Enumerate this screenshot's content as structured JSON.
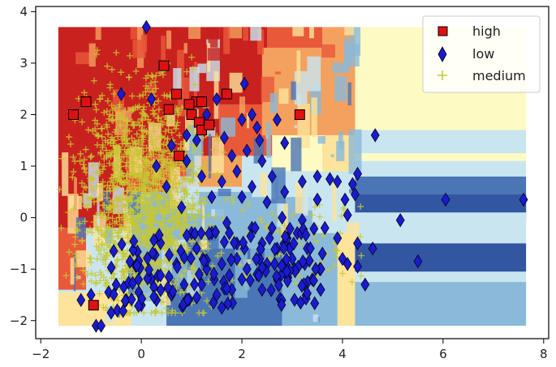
{
  "chart_data": {
    "type": "scatter",
    "title": "",
    "xlabel": "",
    "ylabel": "",
    "xlim": [
      -2.1,
      8.1
    ],
    "ylim": [
      -2.35,
      4.1
    ],
    "x_ticks": [
      -2,
      0,
      2,
      4,
      6,
      8
    ],
    "y_ticks": [
      -2,
      -1,
      0,
      1,
      2,
      3,
      4
    ],
    "grid": false,
    "legend_position": "top-right",
    "background": "decision-region heatmap (red = high, yellow = medium, blue = low)",
    "region_colors": {
      "high_strong": "#c8211e",
      "high": "#e8593a",
      "high_light": "#f4a15f",
      "medium_light": "#fde49a",
      "medium": "#fefac3",
      "low_light": "#c9e6f0",
      "low_mid": "#8ab9d9",
      "low": "#4a76b6",
      "low_strong": "#3356a2"
    },
    "series": [
      {
        "name": "high",
        "marker": "square",
        "color": "#dd1111",
        "points": [
          [
            -1.35,
            2.0
          ],
          [
            -1.1,
            2.25
          ],
          [
            0.45,
            2.95
          ],
          [
            0.55,
            2.1
          ],
          [
            0.7,
            2.4
          ],
          [
            0.75,
            1.2
          ],
          [
            1.0,
            2.0
          ],
          [
            1.1,
            2.25
          ],
          [
            1.15,
            1.85
          ],
          [
            1.2,
            1.7
          ],
          [
            1.2,
            2.25
          ],
          [
            1.7,
            2.4
          ],
          [
            3.15,
            2.0
          ],
          [
            -0.95,
            -1.7
          ],
          [
            0.95,
            2.2
          ],
          [
            1.35,
            1.8
          ]
        ]
      },
      {
        "name": "low",
        "marker": "thin_diamond",
        "color": "#1a1ad0",
        "points": [
          [
            0.1,
            3.7
          ],
          [
            1.5,
            2.3
          ],
          [
            2.05,
            2.6
          ],
          [
            2.2,
            2.0
          ],
          [
            2.0,
            1.9
          ],
          [
            1.65,
            1.55
          ],
          [
            2.3,
            1.75
          ],
          [
            2.7,
            1.9
          ],
          [
            2.85,
            1.45
          ],
          [
            1.8,
            1.2
          ],
          [
            1.9,
            0.9
          ],
          [
            1.6,
            0.7
          ],
          [
            2.1,
            1.3
          ],
          [
            2.4,
            1.1
          ],
          [
            2.6,
            0.8
          ],
          [
            2.2,
            0.6
          ],
          [
            2.0,
            0.4
          ],
          [
            2.5,
            0.3
          ],
          [
            2.85,
            0.5
          ],
          [
            3.2,
            0.7
          ],
          [
            3.5,
            0.35
          ],
          [
            3.5,
            0.8
          ],
          [
            3.75,
            0.75
          ],
          [
            3.9,
            0.7
          ],
          [
            4.05,
            0.35
          ],
          [
            4.25,
            0.45
          ],
          [
            4.3,
            0.85
          ],
          [
            4.1,
            0.05
          ],
          [
            3.65,
            -0.2
          ],
          [
            3.9,
            -0.4
          ],
          [
            4.3,
            -0.5
          ],
          [
            4.65,
            1.6
          ],
          [
            6.05,
            0.35
          ],
          [
            7.6,
            0.35
          ],
          [
            5.15,
            -0.05
          ],
          [
            4.6,
            -0.6
          ],
          [
            5.5,
            -0.85
          ],
          [
            4.3,
            -0.95
          ],
          [
            4.1,
            -0.9
          ],
          [
            4.0,
            -0.8
          ],
          [
            4.45,
            -1.3
          ],
          [
            3.4,
            -1.2
          ],
          [
            3.05,
            -1.0
          ],
          [
            2.9,
            -0.4
          ],
          [
            2.7,
            -0.6
          ],
          [
            2.5,
            -0.9
          ],
          [
            2.3,
            -1.1
          ],
          [
            2.0,
            -1.2
          ],
          [
            1.8,
            -1.4
          ],
          [
            1.5,
            -1.5
          ],
          [
            1.6,
            -1.75
          ],
          [
            1.2,
            -1.3
          ],
          [
            0.9,
            -1.6
          ],
          [
            0.6,
            -1.5
          ],
          [
            0.3,
            -1.6
          ],
          [
            0.0,
            -1.7
          ],
          [
            -0.3,
            -1.6
          ],
          [
            -0.5,
            -1.3
          ],
          [
            -0.9,
            -2.1
          ],
          [
            -0.8,
            -2.1
          ],
          [
            -1.0,
            -1.5
          ],
          [
            -1.2,
            -1.6
          ],
          [
            0.2,
            -1.2
          ],
          [
            0.7,
            -0.9
          ],
          [
            1.1,
            -0.6
          ],
          [
            1.4,
            -0.3
          ],
          [
            1.7,
            -0.1
          ],
          [
            1.9,
            -0.5
          ],
          [
            2.2,
            -0.2
          ],
          [
            2.4,
            -0.5
          ],
          [
            2.6,
            -0.2
          ],
          [
            2.8,
            0.0
          ],
          [
            3.1,
            -0.3
          ],
          [
            3.3,
            -0.6
          ],
          [
            3.0,
            -0.8
          ],
          [
            2.7,
            -1.2
          ],
          [
            2.4,
            -1.4
          ],
          [
            2.1,
            -1.0
          ],
          [
            1.9,
            -0.8
          ],
          [
            1.6,
            -0.9
          ],
          [
            1.3,
            -1.0
          ],
          [
            1.0,
            -0.3
          ],
          [
            0.8,
            0.2
          ],
          [
            0.5,
            0.6
          ],
          [
            0.3,
            1.0
          ],
          [
            0.6,
            1.4
          ],
          [
            0.9,
            1.1
          ],
          [
            1.2,
            0.8
          ],
          [
            1.4,
            0.4
          ],
          [
            1.1,
            1.5
          ],
          [
            -0.4,
            2.4
          ],
          [
            0.2,
            2.3
          ],
          [
            1.3,
            2.0
          ],
          [
            0.9,
            1.6
          ],
          [
            2.35,
            1.5
          ],
          [
            2.55,
            -0.4
          ],
          [
            3.2,
            -0.05
          ],
          [
            3.6,
            -0.7
          ],
          [
            4.2,
            0.65
          ],
          [
            1.75,
            -0.3
          ],
          [
            2.05,
            -0.6
          ],
          [
            2.35,
            -0.8
          ],
          [
            2.65,
            -0.9
          ],
          [
            2.95,
            -0.6
          ],
          [
            3.25,
            -0.9
          ],
          [
            3.55,
            -1.0
          ],
          [
            1.45,
            -1.2
          ],
          [
            1.15,
            -1.1
          ],
          [
            0.85,
            -1.3
          ],
          [
            0.55,
            -1.15
          ],
          [
            0.25,
            -1.35
          ],
          [
            -0.05,
            -1.45
          ],
          [
            -0.35,
            -1.35
          ],
          [
            -0.65,
            -1.45
          ]
        ]
      },
      {
        "name": "medium",
        "marker": "plus",
        "color": "#c8c832",
        "cluster": {
          "x_range": [
            -1.65,
            2.2
          ],
          "y_range": [
            -1.85,
            3.25
          ],
          "center": [
            0.1,
            0.3
          ]
        }
      }
    ]
  }
}
